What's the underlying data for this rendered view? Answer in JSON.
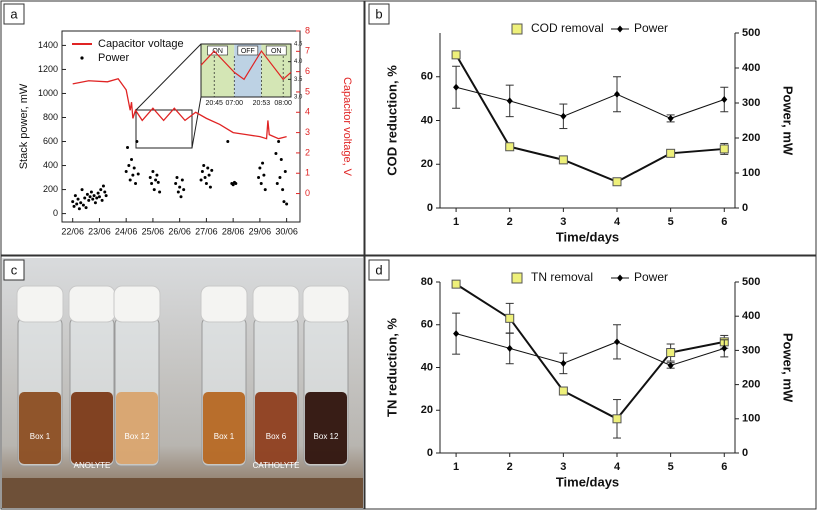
{
  "chart_data": [
    {
      "type": "combo",
      "panel_label": "a",
      "y_label": "Stack power, mW",
      "y2_label": "Capacitor voltage, V",
      "xlim": [
        21.6,
        30.5
      ],
      "xticks": [
        {
          "value": 22,
          "label": "22/06"
        },
        {
          "value": 23,
          "label": "23/06"
        },
        {
          "value": 24,
          "label": "24/06"
        },
        {
          "value": 25,
          "label": "25/06"
        },
        {
          "value": 26,
          "label": "26/06"
        },
        {
          "value": 27,
          "label": "27/06"
        },
        {
          "value": 28,
          "label": "28/06"
        },
        {
          "value": 29,
          "label": "29/06"
        },
        {
          "value": 30,
          "label": "30/06"
        }
      ],
      "ylim": [
        -70,
        1520
      ],
      "yticks": [
        0,
        200,
        400,
        600,
        800,
        1000,
        1200,
        1400
      ],
      "y2lim": [
        -1.4,
        8
      ],
      "y2ticks": [
        0,
        1,
        2,
        3,
        4,
        5,
        6,
        7,
        8
      ],
      "series": [
        {
          "name": "Capacitor voltage",
          "color": "#e02424",
          "axis": "y2",
          "x": [
            22,
            22.6,
            23.3,
            23.7,
            24.0,
            24.15,
            24.2,
            24.25,
            24.35,
            24.6,
            25.0,
            25.4,
            25.8,
            26.2,
            26.6,
            27.0,
            27.5,
            28.0,
            28.5,
            29.0,
            29.25,
            29.3,
            29.35,
            29.7,
            30.0
          ],
          "values": [
            5.4,
            5.55,
            5.5,
            5.65,
            5.1,
            4.1,
            4.5,
            3.7,
            4.1,
            3.6,
            4.2,
            3.6,
            4.2,
            3.6,
            4.0,
            3.7,
            3.4,
            3.0,
            2.9,
            2.8,
            2.7,
            3.6,
            2.9,
            2.7,
            2.8
          ]
        },
        {
          "name": "Power",
          "color": "#000000",
          "x": [
            22.0,
            22.05,
            22.1,
            22.15,
            22.2,
            22.25,
            22.3,
            22.35,
            22.4,
            22.45,
            22.5,
            22.55,
            22.6,
            22.65,
            22.7,
            22.75,
            22.8,
            22.85,
            22.9,
            22.95,
            23.0,
            23.05,
            23.1,
            23.15,
            23.2,
            23.25,
            24.0,
            24.05,
            24.1,
            24.15,
            24.2,
            24.25,
            24.3,
            24.35,
            24.4,
            24.45,
            24.9,
            24.95,
            25.0,
            25.05,
            25.1,
            25.15,
            25.2,
            25.25,
            25.85,
            25.9,
            25.95,
            26.0,
            26.05,
            26.1,
            26.15,
            26.8,
            26.85,
            26.9,
            26.95,
            27.0,
            27.05,
            27.1,
            27.15,
            27.2,
            27.8,
            27.95,
            28.0,
            28.05,
            28.1,
            28.95,
            29.0,
            29.05,
            29.1,
            29.15,
            29.2,
            29.6,
            29.65,
            29.7,
            29.75,
            29.8,
            29.85,
            29.9,
            29.95,
            30.0
          ],
          "values": [
            100,
            60,
            150,
            80,
            120,
            40,
            90,
            200,
            70,
            130,
            50,
            160,
            110,
            140,
            180,
            120,
            150,
            90,
            130,
            170,
            140,
            200,
            110,
            230,
            180,
            150,
            350,
            550,
            400,
            280,
            450,
            320,
            380,
            250,
            600,
            330,
            300,
            250,
            350,
            200,
            280,
            320,
            260,
            180,
            250,
            300,
            180,
            220,
            140,
            280,
            200,
            280,
            350,
            400,
            300,
            250,
            380,
            320,
            220,
            360,
            600,
            250,
            240,
            260,
            250,
            300,
            380,
            250,
            420,
            320,
            200,
            500,
            250,
            600,
            300,
            450,
            200,
            100,
            350,
            80
          ]
        }
      ],
      "inset": {
        "ylim": [
          3,
          4.5
        ],
        "yticks": [
          {
            "value": 3,
            "label": "3.0"
          },
          3.5,
          {
            "value": 4,
            "label": "4.0"
          },
          4.5
        ],
        "xlim": [
          14,
          60
        ],
        "xticks": [
          {
            "value": 20.75,
            "label": "20:45"
          },
          {
            "value": 31,
            "label": "07:00"
          },
          {
            "value": 44.88,
            "label": "20:53"
          },
          {
            "value": 56,
            "label": "08:00"
          }
        ],
        "state_labels": [
          "ON",
          "OFF",
          "ON"
        ],
        "x": [
          14,
          20.75,
          31,
          36,
          44.88,
          56,
          60
        ],
        "values": [
          3.9,
          4.3,
          3.7,
          3.5,
          4.3,
          3.5,
          3.7
        ]
      }
    },
    {
      "type": "line",
      "panel_label": "b",
      "x_label": "Time/days",
      "y_label": "COD reduction, %",
      "y2_label": "Power, mW",
      "x": [
        1,
        2,
        3,
        4,
        5,
        6
      ],
      "xlim": [
        0.7,
        6.2
      ],
      "xticks": [
        1,
        2,
        3,
        4,
        5,
        6
      ],
      "ylim": [
        0,
        80
      ],
      "yticks": [
        0,
        20,
        40,
        60
      ],
      "y2lim": [
        0,
        500
      ],
      "y2ticks": [
        0,
        100,
        200,
        300,
        400,
        500
      ],
      "series": [
        {
          "name": "COD removal",
          "color": "#eef07a",
          "values": [
            70,
            28,
            22,
            12,
            25,
            27
          ],
          "errors": [
            null,
            null,
            null,
            null,
            null,
            2.5
          ]
        },
        {
          "name": "Power",
          "color": "#000000",
          "axis": "y2",
          "values": [
            345,
            306,
            262,
            325,
            256,
            310
          ],
          "errors": [
            60,
            45,
            35,
            50,
            10,
            35
          ]
        }
      ]
    },
    {
      "type": "line",
      "panel_label": "d",
      "x_label": "Time/days",
      "y_label": "TN reduction, %",
      "y2_label": "Power, mW",
      "x": [
        1,
        2,
        3,
        4,
        5,
        6
      ],
      "xlim": [
        0.7,
        6.2
      ],
      "xticks": [
        1,
        2,
        3,
        4,
        5,
        6
      ],
      "ylim": [
        0,
        80
      ],
      "yticks": [
        0,
        20,
        40,
        60,
        80
      ],
      "y2lim": [
        0,
        500
      ],
      "y2ticks": [
        0,
        100,
        200,
        300,
        400,
        500
      ],
      "series": [
        {
          "name": "TN removal",
          "color": "#eef07a",
          "values": [
            79,
            63,
            29,
            16,
            47,
            52
          ],
          "errors": [
            null,
            7,
            null,
            9,
            4,
            3
          ]
        },
        {
          "name": "Power",
          "color": "#000000",
          "axis": "y2",
          "values": [
            349,
            306,
            262,
            325,
            256,
            306
          ],
          "errors": [
            60,
            45,
            30,
            50,
            8,
            25
          ]
        }
      ]
    }
  ],
  "photo": {
    "panel_label": "c",
    "anolyte": {
      "title": "ANOLYTE",
      "vials": [
        "Box 1",
        "Box 12"
      ]
    },
    "catholyte": {
      "title": "CATHOLYTE",
      "vials": [
        "Box 1",
        "Box 6",
        "Box 12"
      ]
    }
  }
}
